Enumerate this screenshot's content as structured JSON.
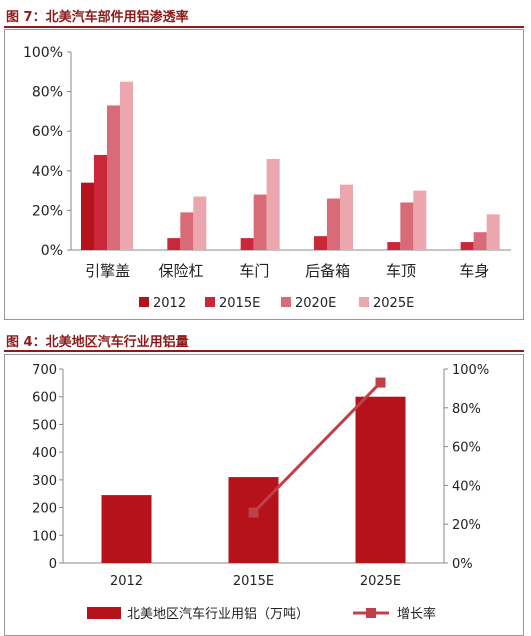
{
  "figure1": {
    "title": "图 7：北美汽车部件用铝渗透率"
  },
  "figure2": {
    "title": "图 4：北美地区汽车行业用铝量"
  },
  "chart_data": [
    {
      "type": "bar",
      "categories": [
        "引擎盖",
        "保险杠",
        "车门",
        "后备箱",
        "车顶",
        "车身"
      ],
      "series": [
        {
          "name": "2012",
          "values": [
            34,
            0,
            0,
            0,
            0,
            0
          ],
          "color": "#b5121b"
        },
        {
          "name": "2015E",
          "values": [
            48,
            6,
            6,
            7,
            4,
            4
          ],
          "color": "#c8283a"
        },
        {
          "name": "2020E",
          "values": [
            73,
            19,
            28,
            26,
            24,
            9
          ],
          "color": "#d96a78"
        },
        {
          "name": "2025E",
          "values": [
            85,
            27,
            46,
            33,
            30,
            18
          ],
          "color": "#eba6ae"
        }
      ],
      "ylim": [
        0,
        100
      ],
      "yticks": [
        "0%",
        "20%",
        "40%",
        "60%",
        "80%",
        "100%"
      ],
      "legend": "bottom",
      "grid": false
    },
    {
      "type": "bar+line",
      "categories": [
        "2012",
        "2015E",
        "2025E"
      ],
      "series": [
        {
          "name": "北美地区汽车行业用铝（万吨）",
          "type": "bar",
          "axis": "left",
          "values": [
            245,
            310,
            600
          ],
          "color": "#b5121b"
        },
        {
          "name": "增长率",
          "type": "line",
          "axis": "right",
          "values": [
            null,
            26,
            93
          ],
          "color": "#c0404a"
        }
      ],
      "ylim_left": [
        0,
        700
      ],
      "yticks_left": [
        "0",
        "100",
        "200",
        "300",
        "400",
        "500",
        "600",
        "700"
      ],
      "ylim_right": [
        0,
        100
      ],
      "yticks_right": [
        "0%",
        "20%",
        "40%",
        "60%",
        "80%",
        "100%"
      ],
      "legend": "bottom",
      "grid": false
    }
  ]
}
